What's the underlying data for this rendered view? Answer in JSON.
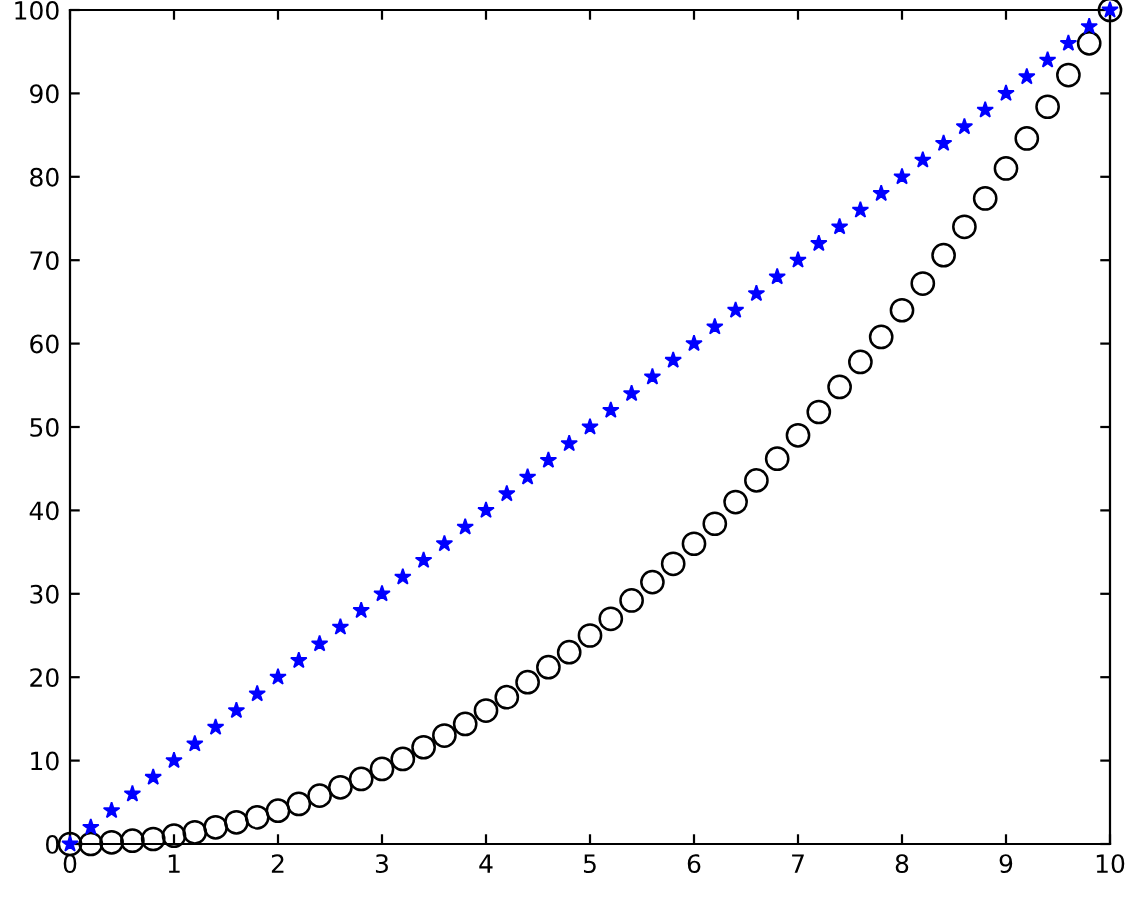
{
  "chart_data": {
    "type": "scatter",
    "x": [
      0,
      0.2,
      0.4,
      0.6,
      0.8,
      1,
      1.2,
      1.4,
      1.6,
      1.8,
      2,
      2.2,
      2.4,
      2.6,
      2.8,
      3,
      3.2,
      3.4,
      3.6,
      3.8,
      4,
      4.2,
      4.4,
      4.6,
      4.8,
      5,
      5.2,
      5.4,
      5.6,
      5.8,
      6,
      6.2,
      6.4,
      6.6,
      6.8,
      7,
      7.2,
      7.4,
      7.6,
      7.8,
      8,
      8.2,
      8.4,
      8.6,
      8.8,
      9,
      9.2,
      9.4,
      9.6,
      9.8,
      10
    ],
    "series": [
      {
        "color": "#0000ff",
        "marker": "star",
        "values": [
          0,
          2,
          4,
          6,
          8,
          10,
          12,
          14,
          16,
          18,
          20,
          22,
          24,
          26,
          28,
          30,
          32,
          34,
          36,
          38,
          40,
          42,
          44,
          46,
          48,
          50,
          52,
          54,
          56,
          58,
          60,
          62,
          64,
          66,
          68,
          70,
          72,
          74,
          76,
          78,
          80,
          82,
          84,
          86,
          88,
          90,
          92,
          94,
          96,
          98,
          100
        ]
      },
      {
        "color": "#000000",
        "marker": "circle",
        "values": [
          0,
          0,
          0.2,
          0.4,
          0.6,
          1,
          1.4,
          2,
          2.6,
          3.2,
          4,
          4.8,
          5.8,
          6.8,
          7.8,
          9,
          10.2,
          11.6,
          13,
          14.4,
          16,
          17.6,
          19.4,
          21.2,
          23,
          25,
          27,
          29.2,
          31.4,
          33.6,
          36,
          38.4,
          41,
          43.6,
          46.2,
          49,
          51.8,
          54.8,
          57.8,
          60.8,
          64,
          67.2,
          70.6,
          74,
          77.4,
          81,
          84.6,
          88.4,
          92.2,
          96,
          100
        ]
      }
    ],
    "xlim": [
      0,
      10
    ],
    "xticks": [
      0,
      1,
      2,
      3,
      4,
      5,
      6,
      7,
      8,
      9,
      10
    ],
    "ylim": [
      0,
      100
    ],
    "yticks": [
      0,
      10,
      20,
      30,
      40,
      50,
      60,
      70,
      80,
      90,
      100
    ],
    "grid": false,
    "legend": false,
    "line_style": "none"
  }
}
